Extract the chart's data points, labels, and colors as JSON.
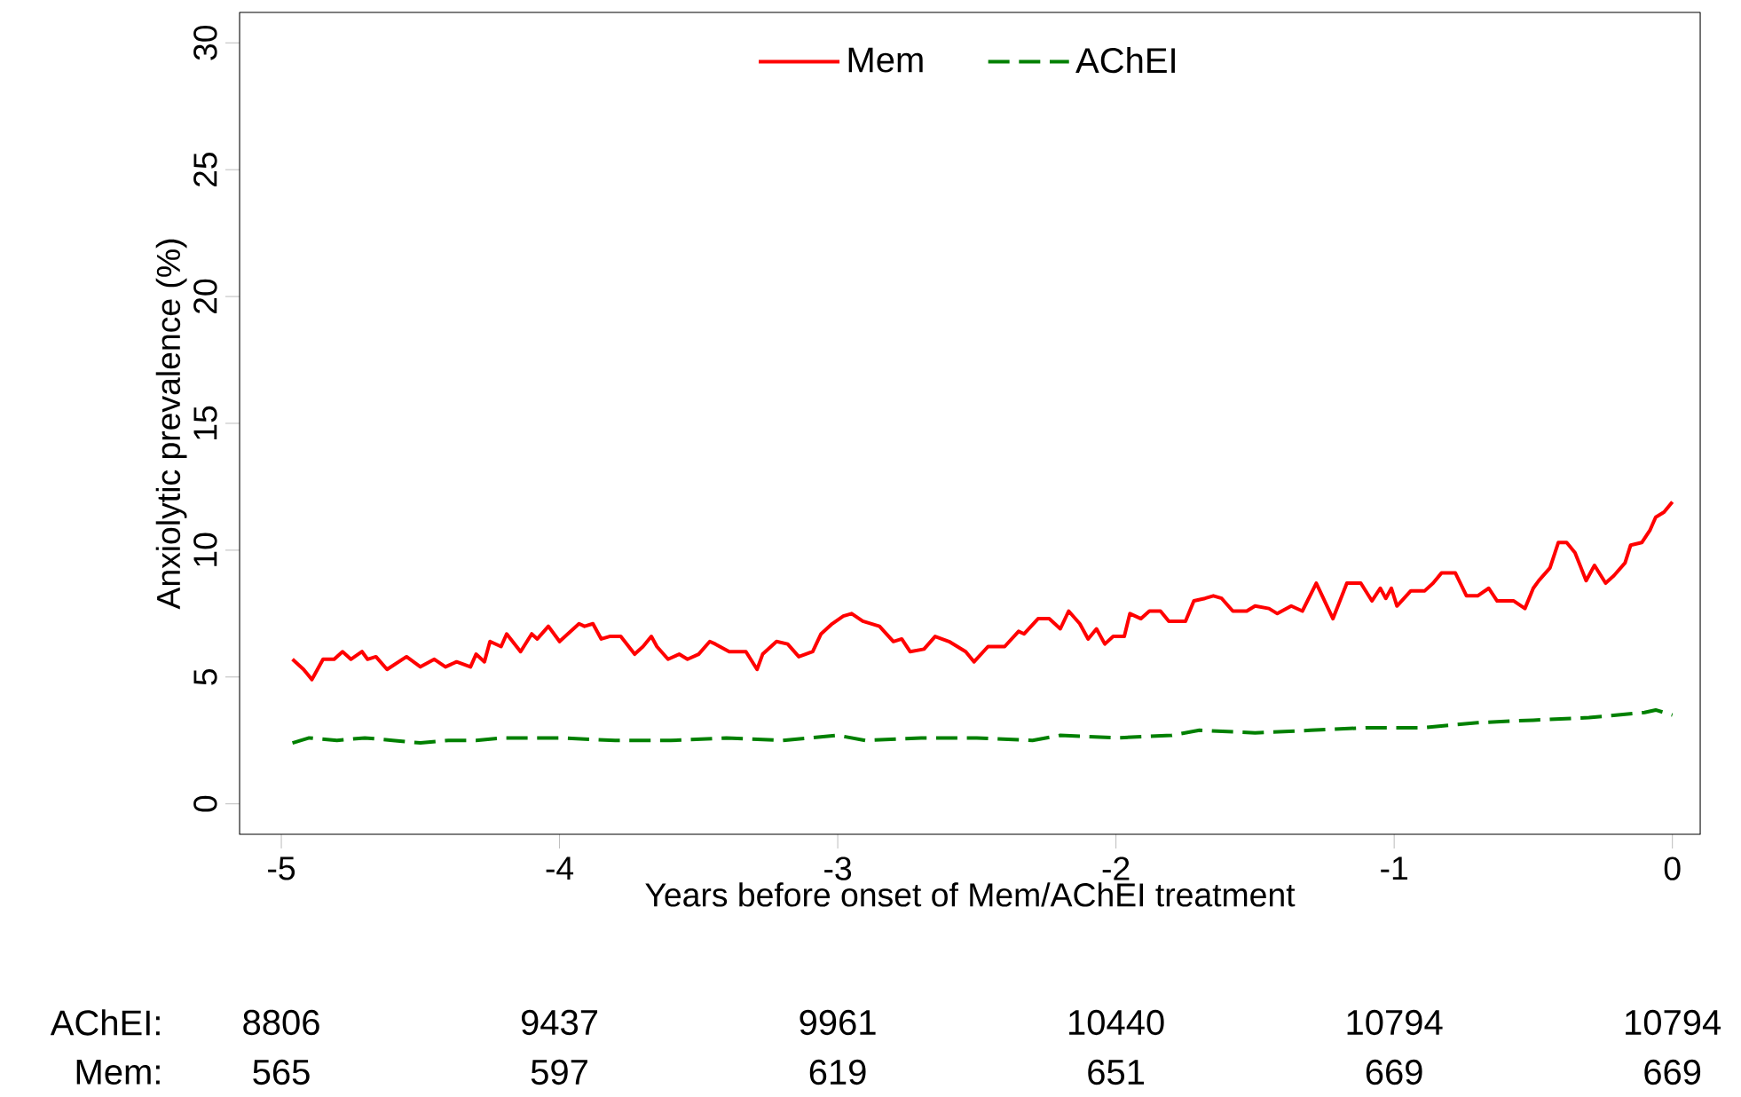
{
  "chart_data": {
    "type": "line",
    "xlabel": "Years before onset of Mem/AChEI treatment",
    "ylabel": "Anxiolytic prevalence (%)",
    "xlim": [
      -5.15,
      0.1
    ],
    "ylim": [
      -1.2,
      31.2
    ],
    "xticks": [
      -5,
      -4,
      -3,
      -2,
      -1,
      0
    ],
    "yticks": [
      0,
      5,
      10,
      15,
      20,
      25,
      30
    ],
    "grid": false,
    "legend": "top",
    "marker": "none",
    "series": [
      {
        "name": "Mem",
        "color": "#ff0000",
        "line_style": "solid",
        "x": [
          -4.96,
          -4.92,
          -4.89,
          -4.85,
          -4.81,
          -4.78,
          -4.75,
          -4.71,
          -4.69,
          -4.66,
          -4.62,
          -4.55,
          -4.5,
          -4.45,
          -4.41,
          -4.37,
          -4.32,
          -4.3,
          -4.27,
          -4.25,
          -4.21,
          -4.19,
          -4.14,
          -4.1,
          -4.08,
          -4.04,
          -4.0,
          -3.93,
          -3.91,
          -3.88,
          -3.85,
          -3.82,
          -3.78,
          -3.73,
          -3.7,
          -3.67,
          -3.65,
          -3.61,
          -3.57,
          -3.54,
          -3.5,
          -3.46,
          -3.44,
          -3.39,
          -3.33,
          -3.29,
          -3.27,
          -3.22,
          -3.18,
          -3.14,
          -3.09,
          -3.06,
          -3.02,
          -2.98,
          -2.95,
          -2.91,
          -2.85,
          -2.8,
          -2.77,
          -2.74,
          -2.69,
          -2.65,
          -2.6,
          -2.54,
          -2.51,
          -2.46,
          -2.4,
          -2.35,
          -2.33,
          -2.28,
          -2.24,
          -2.2,
          -2.17,
          -2.13,
          -2.1,
          -2.07,
          -2.04,
          -2.01,
          -1.97,
          -1.95,
          -1.91,
          -1.88,
          -1.84,
          -1.81,
          -1.75,
          -1.72,
          -1.68,
          -1.65,
          -1.62,
          -1.58,
          -1.53,
          -1.5,
          -1.45,
          -1.42,
          -1.37,
          -1.33,
          -1.28,
          -1.22,
          -1.17,
          -1.12,
          -1.08,
          -1.05,
          -1.03,
          -1.01,
          -0.99,
          -0.94,
          -0.89,
          -0.86,
          -0.83,
          -0.78,
          -0.74,
          -0.7,
          -0.66,
          -0.63,
          -0.57,
          -0.53,
          -0.5,
          -0.48,
          -0.44,
          -0.41,
          -0.38,
          -0.35,
          -0.31,
          -0.28,
          -0.24,
          -0.21,
          -0.17,
          -0.15,
          -0.11,
          -0.08,
          -0.06,
          -0.03,
          0
        ],
        "values": [
          5.7,
          5.3,
          4.9,
          5.7,
          5.7,
          6.0,
          5.7,
          6.0,
          5.7,
          5.8,
          5.3,
          5.8,
          5.4,
          5.7,
          5.4,
          5.6,
          5.4,
          5.9,
          5.6,
          6.4,
          6.2,
          6.7,
          6.0,
          6.7,
          6.5,
          7.0,
          6.4,
          7.1,
          7.0,
          7.1,
          6.5,
          6.6,
          6.6,
          5.9,
          6.2,
          6.6,
          6.2,
          5.7,
          5.9,
          5.7,
          5.9,
          6.4,
          6.3,
          6.0,
          6.0,
          5.3,
          5.9,
          6.4,
          6.3,
          5.8,
          6.0,
          6.7,
          7.1,
          7.4,
          7.5,
          7.2,
          7.0,
          6.4,
          6.5,
          6.0,
          6.1,
          6.6,
          6.4,
          6.0,
          5.6,
          6.2,
          6.2,
          6.8,
          6.7,
          7.3,
          7.3,
          6.9,
          7.6,
          7.1,
          6.5,
          6.9,
          6.3,
          6.6,
          6.6,
          7.5,
          7.3,
          7.6,
          7.6,
          7.2,
          7.2,
          8.0,
          8.1,
          8.2,
          8.1,
          7.6,
          7.6,
          7.8,
          7.7,
          7.5,
          7.8,
          7.6,
          8.7,
          7.3,
          8.7,
          8.7,
          8.0,
          8.5,
          8.1,
          8.5,
          7.8,
          8.4,
          8.4,
          8.7,
          9.1,
          9.1,
          8.2,
          8.2,
          8.5,
          8.0,
          8.0,
          7.7,
          8.5,
          8.8,
          9.3,
          10.3,
          10.3,
          9.9,
          8.8,
          9.4,
          8.7,
          9.0,
          9.5,
          10.2,
          10.3,
          10.8,
          11.3,
          11.5,
          11.9
        ]
      },
      {
        "name": "AChEI",
        "color": "#008000",
        "line_style": "dashed",
        "x": [
          -4.96,
          -4.9,
          -4.8,
          -4.7,
          -4.6,
          -4.5,
          -4.4,
          -4.3,
          -4.2,
          -4.0,
          -3.8,
          -3.6,
          -3.4,
          -3.2,
          -3.0,
          -2.9,
          -2.7,
          -2.5,
          -2.3,
          -2.2,
          -2.0,
          -1.8,
          -1.7,
          -1.5,
          -1.3,
          -1.1,
          -0.9,
          -0.7,
          -0.5,
          -0.3,
          -0.1,
          -0.06,
          0
        ],
        "values": [
          2.4,
          2.6,
          2.5,
          2.6,
          2.5,
          2.4,
          2.5,
          2.5,
          2.6,
          2.6,
          2.5,
          2.5,
          2.6,
          2.5,
          2.7,
          2.5,
          2.6,
          2.6,
          2.5,
          2.7,
          2.6,
          2.7,
          2.9,
          2.8,
          2.9,
          3.0,
          3.0,
          3.2,
          3.3,
          3.4,
          3.6,
          3.7,
          3.5
        ]
      }
    ],
    "annotations": [
      "AChEI:",
      "8806",
      "9437",
      "9961",
      "10440",
      "10794",
      "10794",
      "Mem:",
      "565",
      "597",
      "619",
      "651",
      "669",
      "669"
    ]
  }
}
